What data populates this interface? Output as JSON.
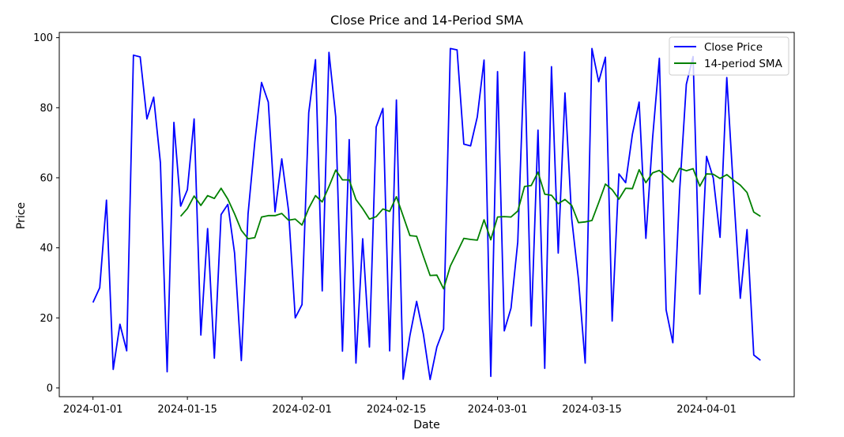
{
  "chart_data": {
    "type": "line",
    "title": "Close Price and 14-Period SMA",
    "xlabel": "Date",
    "ylabel": "Price",
    "x_start": "2024-01-01",
    "x_end": "2024-04-09",
    "x_limits": [
      "2023-12-27",
      "2024-04-14"
    ],
    "ylim": [
      -2.5,
      101.5
    ],
    "y_ticks": [
      0,
      20,
      40,
      60,
      80,
      100
    ],
    "y_tick_labels": [
      "0",
      "20",
      "40",
      "60",
      "80",
      "100"
    ],
    "x_ticks": [
      "2024-01-01",
      "2024-01-15",
      "2024-02-01",
      "2024-02-15",
      "2024-03-01",
      "2024-03-15",
      "2024-04-01"
    ],
    "x_tick_labels": [
      "2024-01-01",
      "2024-01-15",
      "2024-02-01",
      "2024-02-15",
      "2024-03-01",
      "2024-03-15",
      "2024-04-01"
    ],
    "grid": false,
    "legend": "top-right",
    "series": [
      {
        "name": "Close Price",
        "color": "#0000ff",
        "values": [
          24.4,
          28.6,
          53.6,
          5.3,
          18.2,
          10.6,
          95.0,
          94.5,
          76.8,
          83.0,
          64.3,
          4.6,
          75.8,
          51.9,
          56.6,
          76.8,
          15.1,
          45.5,
          8.5,
          49.5,
          52.4,
          38.5,
          7.8,
          49.7,
          70.2,
          87.2,
          81.6,
          50.3,
          65.4,
          50.7,
          20.0,
          23.8,
          78.6,
          93.7,
          27.7,
          95.8,
          77.4,
          10.5,
          70.9,
          7.1,
          42.6,
          11.7,
          74.5,
          79.8,
          10.6,
          82.2,
          2.5,
          14.9,
          24.7,
          15.4,
          2.4,
          11.7,
          16.8,
          96.9,
          96.5,
          69.6,
          69.1,
          77.4,
          93.6,
          3.3,
          90.3,
          16.3,
          22.8,
          41.7,
          95.9,
          17.7,
          73.6,
          5.6,
          91.7,
          38.5,
          84.2,
          48.3,
          31.1,
          7.1,
          96.9,
          87.4,
          94.4,
          19.1,
          61.1,
          58.6,
          72.4,
          81.6,
          42.7,
          71.4,
          94.1,
          22.3,
          12.9,
          56.0,
          86.7,
          94.6,
          26.8,
          66.1,
          59.9,
          43.0,
          88.6,
          56.2,
          25.6,
          45.2,
          9.4,
          7.9
        ]
      },
      {
        "name": "14-period SMA",
        "color": "#008000",
        "values": [
          null,
          null,
          null,
          null,
          null,
          null,
          null,
          null,
          null,
          null,
          null,
          null,
          null,
          49.0,
          51.2,
          54.8,
          52.1,
          54.9,
          54.1,
          57.0,
          53.9,
          49.7,
          45.0,
          42.6,
          42.9,
          48.8,
          49.2,
          49.2,
          49.8,
          47.9,
          48.2,
          46.5,
          51.3,
          54.9,
          53.1,
          57.5,
          62.2,
          59.4,
          59.4,
          53.8,
          51.2,
          48.2,
          48.9,
          51.1,
          50.4,
          54.6,
          49.1,
          43.5,
          43.3,
          37.6,
          32.1,
          32.2,
          28.3,
          34.8,
          38.7,
          42.7,
          42.4,
          42.2,
          48.0,
          42.3,
          48.8,
          48.9,
          48.8,
          50.5,
          57.5,
          57.8,
          61.6,
          55.3,
          55.0,
          52.6,
          53.8,
          52.1,
          47.2,
          47.4,
          47.8,
          52.9,
          58.2,
          56.6,
          53.9,
          57.0,
          56.9,
          62.3,
          58.6,
          61.4,
          62.1,
          60.4,
          58.8,
          62.7,
          62.0,
          62.6,
          57.6,
          61.1,
          61.0,
          59.8,
          60.9,
          59.3,
          57.9,
          55.8,
          50.2,
          49.0
        ]
      }
    ]
  }
}
